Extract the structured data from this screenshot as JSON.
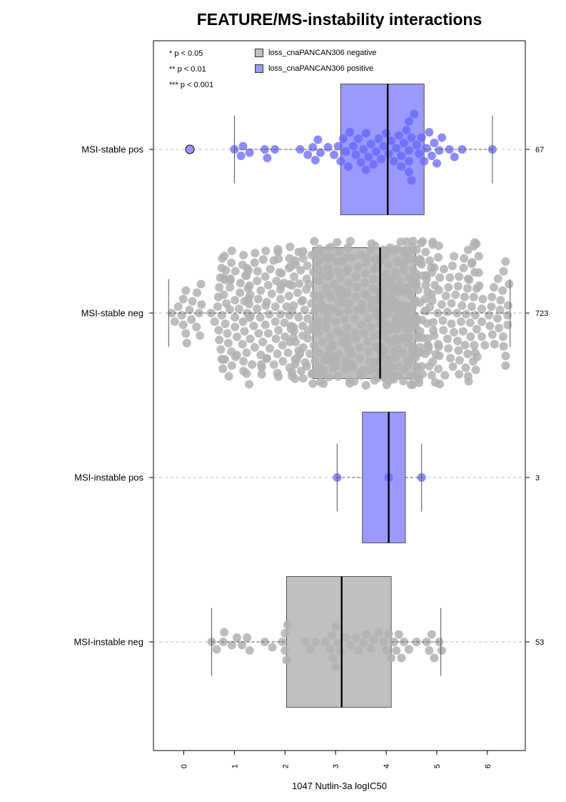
{
  "title": "FEATURE/MS-instability interactions",
  "significance": [
    "* p < 0.05",
    "** p < 0.01",
    "*** p < 0.001"
  ],
  "legend": [
    {
      "label": "loss_cnaPANCAN306 negative",
      "color": "#c0c0c0"
    },
    {
      "label": "loss_cnaPANCAN306 positive",
      "color": "#9999ff"
    }
  ],
  "chart_data": {
    "type": "box",
    "title": "FEATURE/MS-instability interactions",
    "xlabel": "1047 Nutlin-3a logIC50",
    "xlim": [
      -0.6,
      6.75
    ],
    "xticks": [
      0,
      1,
      2,
      3,
      4,
      5,
      6
    ],
    "orientation": "horizontal",
    "colors": {
      "negative": "#c0c0c0",
      "positive": "#9999ff",
      "positive_point": "#6666ff",
      "negative_point": "#b2b2b2"
    },
    "groups": [
      {
        "label": "MSI-stable pos",
        "n": "67",
        "status": "positive",
        "whisker_low": 1.0,
        "q1": 3.1,
        "median": 4.03,
        "q3": 4.75,
        "whisker_high": 6.1,
        "outliers": [
          0.12
        ],
        "points": [
          1.0,
          1.13,
          1.17,
          1.3,
          1.6,
          1.65,
          1.8,
          2.3,
          2.45,
          2.65,
          2.6,
          2.55,
          2.7,
          2.85,
          2.97,
          3.05,
          3.1,
          3.15,
          3.2,
          3.25,
          3.28,
          3.35,
          3.4,
          3.45,
          3.5,
          3.55,
          3.6,
          3.65,
          3.7,
          3.75,
          3.8,
          3.85,
          3.9,
          3.95,
          4.0,
          4.05,
          4.1,
          4.15,
          4.2,
          4.25,
          4.3,
          4.35,
          4.4,
          4.45,
          4.45,
          4.45,
          4.45,
          4.5,
          4.5,
          4.55,
          4.6,
          4.65,
          4.7,
          4.75,
          4.8,
          4.85,
          4.9,
          4.95,
          5.0,
          5.05,
          5.1,
          5.25,
          5.35,
          5.5,
          6.1,
          4.3,
          3.6
        ]
      },
      {
        "label": "MSI-stable neg",
        "n": "723",
        "status": "negative",
        "whisker_low": -0.3,
        "q1": 2.55,
        "median": 3.88,
        "q3": 4.58,
        "whisker_high": 6.45,
        "outliers": [],
        "points": []
      },
      {
        "label": "MSI-instable pos",
        "n": "3",
        "status": "positive",
        "whisker_low": 3.03,
        "q1": 3.53,
        "median": 4.05,
        "q3": 4.38,
        "whisker_high": 4.7,
        "outliers": [],
        "points": [
          3.03,
          4.05,
          4.7
        ]
      },
      {
        "label": "MSI-instable neg",
        "n": "53",
        "status": "negative",
        "whisker_low": 0.55,
        "q1": 2.03,
        "median": 3.12,
        "q3": 4.1,
        "whisker_high": 5.08,
        "outliers": [],
        "points": [
          0.55,
          0.65,
          0.78,
          0.8,
          0.95,
          1.05,
          1.15,
          1.25,
          1.3,
          1.6,
          1.75,
          1.95,
          2.0,
          2.0,
          2.03,
          2.05,
          2.4,
          2.5,
          2.6,
          2.8,
          2.9,
          2.93,
          2.95,
          3.0,
          3.0,
          3.05,
          3.1,
          3.2,
          3.3,
          3.4,
          3.45,
          3.55,
          3.6,
          3.7,
          3.75,
          3.85,
          3.95,
          4.0,
          4.05,
          4.1,
          4.15,
          4.25,
          4.3,
          4.35,
          4.45,
          4.6,
          4.8,
          4.85,
          4.9,
          4.95,
          5.05,
          5.1,
          4.2
        ]
      }
    ]
  }
}
